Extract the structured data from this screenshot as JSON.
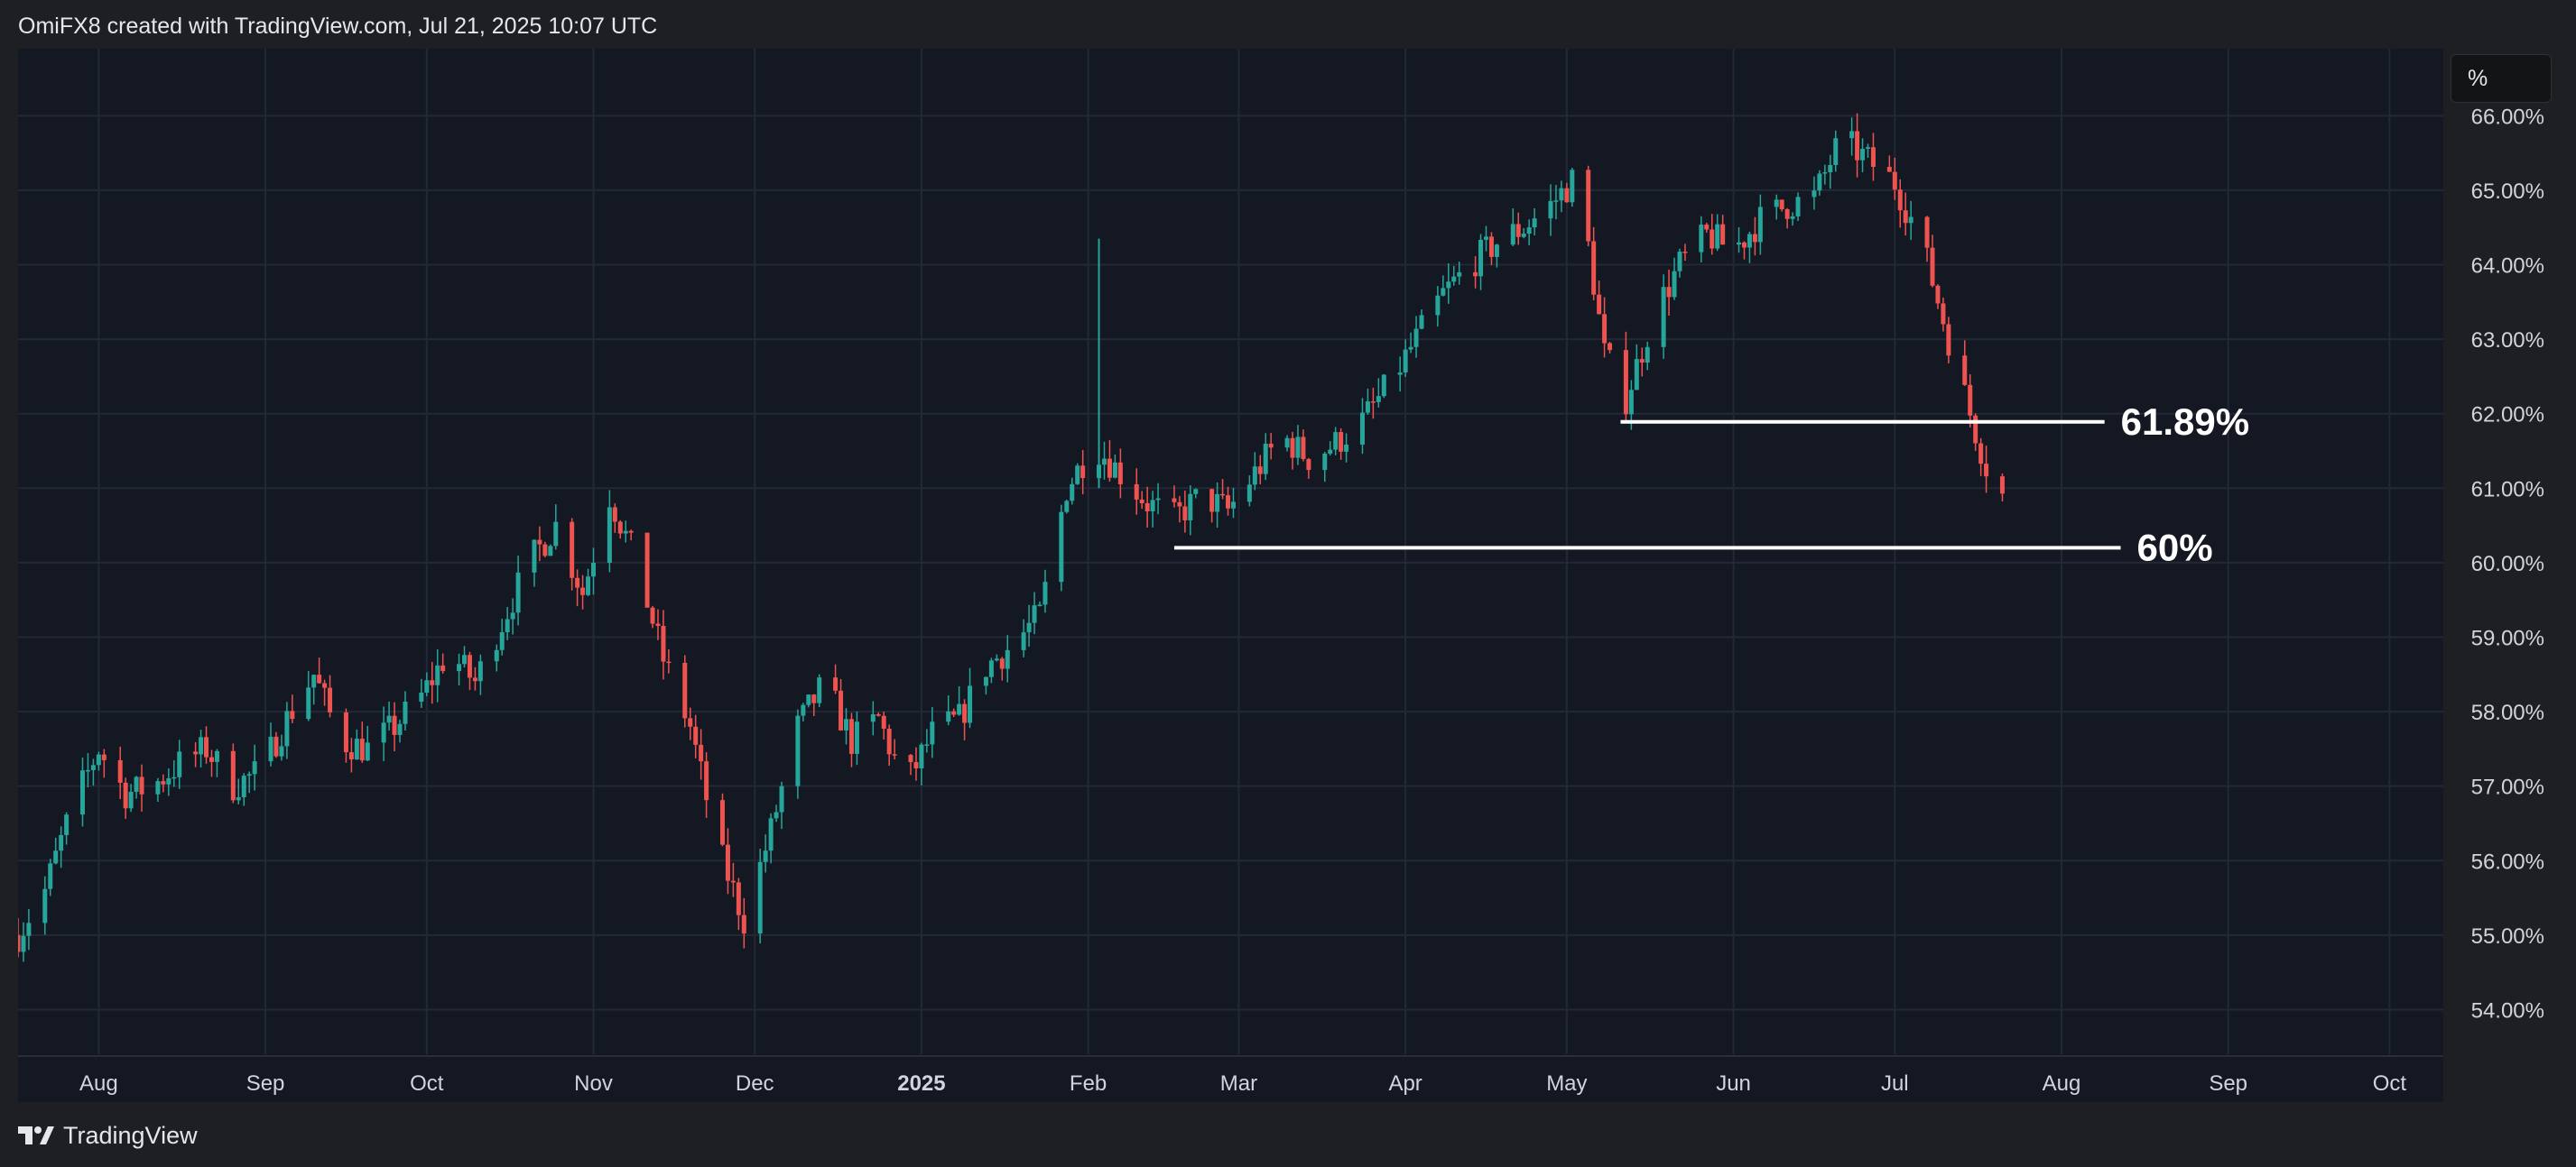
{
  "header": {
    "caption": "OmiFX8 created with TradingView.com, Jul 21, 2025 10:07 UTC"
  },
  "scale_button": {
    "label": "%"
  },
  "footer": {
    "brand_name": "TradingView",
    "brand_icon": "tradingview-logo-icon"
  },
  "colors": {
    "up": "#26a69a",
    "down": "#ef5350",
    "grid": "#232836",
    "background": "#141823",
    "frame": "#1e1f22",
    "text": "#d1d4dc",
    "level_line": "#ffffff"
  },
  "chart_data": {
    "type": "candlestick",
    "title": "",
    "xlabel": "",
    "ylabel": "",
    "y_unit": "%",
    "ylim": [
      53.4,
      66.9
    ],
    "y_ticks": [
      "54.00%",
      "55.00%",
      "56.00%",
      "57.00%",
      "58.00%",
      "59.00%",
      "60.00%",
      "61.00%",
      "62.00%",
      "63.00%",
      "64.00%",
      "65.00%",
      "66.00%"
    ],
    "x_ticks": [
      {
        "label": "Aug",
        "date": "2024-08-01",
        "bold": false
      },
      {
        "label": "Sep",
        "date": "2024-09-01",
        "bold": false
      },
      {
        "label": "Oct",
        "date": "2024-10-01",
        "bold": false
      },
      {
        "label": "Nov",
        "date": "2024-11-01",
        "bold": false
      },
      {
        "label": "Dec",
        "date": "2024-12-01",
        "bold": false
      },
      {
        "label": "2025",
        "date": "2025-01-01",
        "bold": true
      },
      {
        "label": "Feb",
        "date": "2025-02-01",
        "bold": false
      },
      {
        "label": "Mar",
        "date": "2025-03-01",
        "bold": false
      },
      {
        "label": "Apr",
        "date": "2025-04-01",
        "bold": false
      },
      {
        "label": "May",
        "date": "2025-05-01",
        "bold": false
      },
      {
        "label": "Jun",
        "date": "2025-06-01",
        "bold": false
      },
      {
        "label": "Jul",
        "date": "2025-07-01",
        "bold": false
      },
      {
        "label": "Aug",
        "date": "2025-08-01",
        "bold": false
      },
      {
        "label": "Sep",
        "date": "2025-09-01",
        "bold": false
      },
      {
        "label": "Oct",
        "date": "2025-10-01",
        "bold": false
      }
    ],
    "xlim": [
      "2024-07-17",
      "2025-10-11"
    ],
    "grid": true,
    "levels": [
      {
        "label": "61.89%",
        "value": 61.89,
        "from": "2025-05-11",
        "to": "2025-08-09"
      },
      {
        "label": "60%",
        "value": 60.2,
        "from": "2025-02-17",
        "to": "2025-08-12"
      }
    ],
    "series": [
      {
        "x": [
          "2024-07-17",
          "2024-07-22",
          "2024-07-27",
          "2024-08-01",
          "2024-08-06",
          "2024-08-11",
          "2024-08-16",
          "2024-08-21",
          "2024-08-26",
          "2024-08-31",
          "2024-09-05",
          "2024-09-10",
          "2024-09-15",
          "2024-09-20",
          "2024-09-25",
          "2024-09-30",
          "2024-10-05",
          "2024-10-10",
          "2024-10-15",
          "2024-10-20",
          "2024-10-25",
          "2024-10-30",
          "2024-11-04",
          "2024-11-09",
          "2024-11-14",
          "2024-11-19",
          "2024-11-24",
          "2024-11-29",
          "2024-12-04",
          "2024-12-09",
          "2024-12-14",
          "2024-12-19",
          "2024-12-24",
          "2024-12-29",
          "2025-01-03",
          "2025-01-08",
          "2025-01-13",
          "2025-01-18",
          "2025-01-23",
          "2025-01-28",
          "2025-02-02",
          "2025-02-07",
          "2025-02-12",
          "2025-02-17",
          "2025-02-22",
          "2025-02-27",
          "2025-03-04",
          "2025-03-09",
          "2025-03-14",
          "2025-03-19",
          "2025-03-24",
          "2025-03-29",
          "2025-04-03",
          "2025-04-08",
          "2025-04-13",
          "2025-04-18",
          "2025-04-23",
          "2025-04-28",
          "2025-05-03",
          "2025-05-08",
          "2025-05-12",
          "2025-05-17",
          "2025-05-22",
          "2025-05-27",
          "2025-06-01",
          "2025-06-06",
          "2025-06-11",
          "2025-06-16",
          "2025-06-21",
          "2025-06-26",
          "2025-07-01",
          "2025-07-06",
          "2025-07-11",
          "2025-07-15",
          "2025-07-18",
          "2025-07-21"
        ],
        "y": [
          55.0,
          55.6,
          56.7,
          57.5,
          56.9,
          57.0,
          57.3,
          57.5,
          57.0,
          57.2,
          57.9,
          58.5,
          57.6,
          57.5,
          57.8,
          58.2,
          58.8,
          58.4,
          59.2,
          60.0,
          60.5,
          59.6,
          60.9,
          60.0,
          58.7,
          57.8,
          56.2,
          55.2,
          56.4,
          57.8,
          58.4,
          57.6,
          57.9,
          57.0,
          57.7,
          57.9,
          58.6,
          58.9,
          59.3,
          61.0,
          61.6,
          61.2,
          60.8,
          60.6,
          60.9,
          60.7,
          61.2,
          61.7,
          61.4,
          61.6,
          61.9,
          62.4,
          63.0,
          63.6,
          64.0,
          64.3,
          64.5,
          64.8,
          65.2,
          62.8,
          62.2,
          63.3,
          64.0,
          64.4,
          64.2,
          64.6,
          64.8,
          64.9,
          65.7,
          65.4,
          65.1,
          64.3,
          63.0,
          62.0,
          61.3,
          60.9
        ],
        "range": [
          55.0,
          55.9,
          56.0,
          57.8,
          56.8,
          57.3,
          57.6,
          57.7,
          57.1,
          57.5,
          58.4,
          57.6,
          57.4,
          57.7,
          58.3,
          58.9,
          58.3,
          59.0,
          60.1,
          60.6,
          59.5,
          61.0,
          60.0,
          58.8,
          57.7,
          56.0,
          55.5,
          56.5,
          57.6,
          58.6,
          57.6,
          57.9,
          56.8,
          57.7,
          58.0,
          58.6,
          58.9,
          59.3,
          61.2,
          61.9,
          61.3,
          60.6,
          60.7,
          60.7,
          60.6,
          61.3,
          61.8,
          61.5,
          61.5,
          61.9,
          62.4,
          63.1,
          63.6,
          64.0,
          64.3,
          64.6,
          64.8,
          65.3,
          62.6,
          62.1,
          63.4,
          64.1,
          64.4,
          64.1,
          64.6,
          64.8,
          64.9,
          65.8,
          65.4,
          65.1,
          64.3,
          62.9,
          61.8,
          61.1,
          60.8,
          60.85
        ]
      }
    ]
  }
}
